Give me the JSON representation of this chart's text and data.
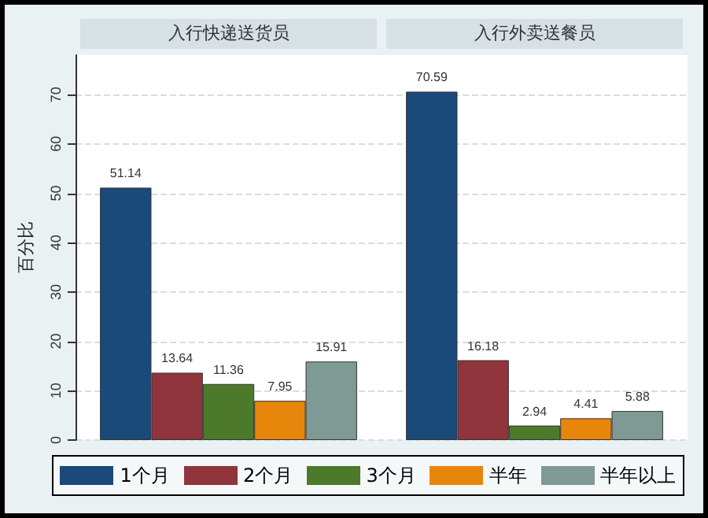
{
  "chart_data": {
    "type": "bar",
    "categories": [
      "入行快递送货员",
      "入行外卖送餐员"
    ],
    "ylabel": "百分比",
    "ylim": [
      0,
      78
    ],
    "yticks": [
      0,
      10,
      20,
      30,
      40,
      50,
      60,
      70
    ],
    "grid": "y",
    "legend": "bottom",
    "data_labels": true,
    "series": [
      {
        "name": "1个月",
        "color": "#1a4a7a",
        "values": [
          51.14,
          70.59
        ]
      },
      {
        "name": "2个月",
        "color": "#90353b",
        "values": [
          13.64,
          16.18
        ]
      },
      {
        "name": "3个月",
        "color": "#4d7a2a",
        "values": [
          11.36,
          2.94
        ]
      },
      {
        "name": "半年",
        "color": "#e8860c",
        "values": [
          7.95,
          4.41
        ]
      },
      {
        "name": "半年以上",
        "color": "#7f9a95",
        "values": [
          15.91,
          5.88
        ]
      }
    ]
  }
}
